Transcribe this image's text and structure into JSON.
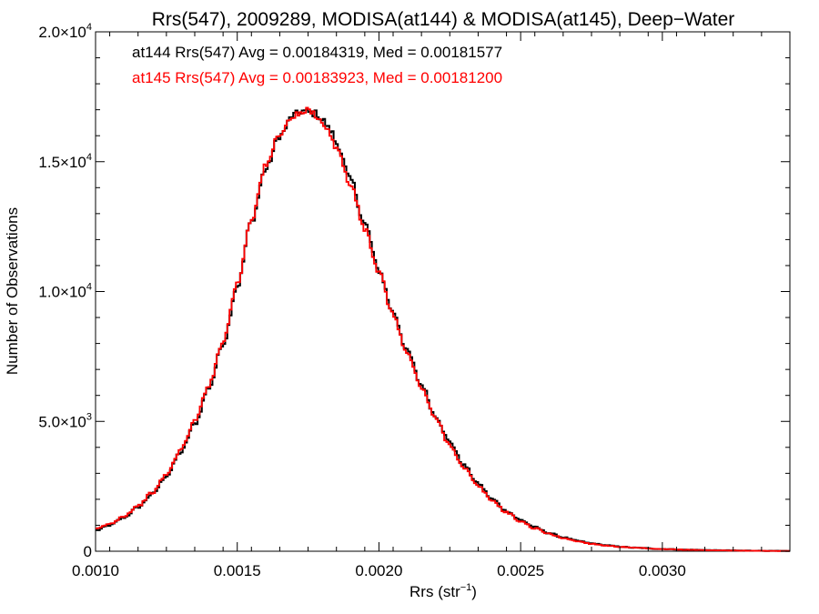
{
  "chart_data": {
    "type": "line",
    "title": "Rrs(547), 2009289, MODISA(at144) & MODISA(at145), Deep−Water",
    "xlabel": "Rrs (str",
    "xlabel_sup": "−1",
    "xlabel_suffix": ")",
    "ylabel": "Number of Observations",
    "xlim": [
      0.001,
      0.00345
    ],
    "ylim": [
      0,
      20000
    ],
    "grid": false,
    "x_ticks": [
      {
        "value": 0.001,
        "label": "0.0010"
      },
      {
        "value": 0.0015,
        "label": "0.0015"
      },
      {
        "value": 0.002,
        "label": "0.0020"
      },
      {
        "value": 0.0025,
        "label": "0.0025"
      },
      {
        "value": 0.003,
        "label": "0.0030"
      }
    ],
    "y_ticks": [
      {
        "value": 0,
        "mant": "0",
        "exp": ""
      },
      {
        "value": 5000,
        "mant": "5.0×10",
        "exp": "3"
      },
      {
        "value": 10000,
        "mant": "1.0×10",
        "exp": "4"
      },
      {
        "value": 15000,
        "mant": "1.5×10",
        "exp": "4"
      },
      {
        "value": 20000,
        "mant": "2.0×10",
        "exp": "4"
      }
    ],
    "legend": [
      {
        "text": "at144 Rrs(547) Avg = 0.00184319, Med = 0.00181577",
        "color": "#000000"
      },
      {
        "text": "at145 Rrs(547) Avg = 0.00183923, Med = 0.00181200",
        "color": "#ff0000"
      }
    ],
    "legend_position": "top-left",
    "series": [
      {
        "color": "#000000",
        "x": [
          0.001,
          0.00105,
          0.0011,
          0.00115,
          0.0012,
          0.00125,
          0.0013,
          0.00135,
          0.0014,
          0.00145,
          0.0015,
          0.00155,
          0.0016,
          0.00165,
          0.0017,
          0.00173,
          0.00175,
          0.00178,
          0.0018,
          0.00183,
          0.00185,
          0.0019,
          0.00195,
          0.002,
          0.00205,
          0.0021,
          0.00215,
          0.0022,
          0.00225,
          0.0023,
          0.00235,
          0.0024,
          0.00245,
          0.0025,
          0.00255,
          0.0026,
          0.00265,
          0.0027,
          0.00275,
          0.0028,
          0.00285,
          0.0029,
          0.003,
          0.0031,
          0.0032,
          0.0033,
          0.0034,
          0.00345
        ],
        "values": [
          800,
          1000,
          1300,
          1700,
          2200,
          2900,
          3800,
          4900,
          6300,
          8000,
          10200,
          12700,
          14700,
          16000,
          16800,
          16950,
          16900,
          16850,
          16600,
          16200,
          15700,
          14300,
          12600,
          10800,
          9200,
          7700,
          6400,
          5200,
          4200,
          3300,
          2600,
          2000,
          1550,
          1200,
          920,
          700,
          530,
          400,
          300,
          230,
          175,
          135,
          85,
          55,
          35,
          22,
          12,
          8
        ]
      },
      {
        "color": "#ff0000",
        "x": [
          0.001,
          0.00105,
          0.0011,
          0.00115,
          0.0012,
          0.00125,
          0.0013,
          0.00135,
          0.0014,
          0.00145,
          0.0015,
          0.00155,
          0.0016,
          0.00165,
          0.0017,
          0.00173,
          0.00175,
          0.00178,
          0.0018,
          0.00183,
          0.00185,
          0.0019,
          0.00195,
          0.002,
          0.00205,
          0.0021,
          0.00215,
          0.0022,
          0.00225,
          0.0023,
          0.00235,
          0.0024,
          0.00245,
          0.0025,
          0.00255,
          0.0026,
          0.00265,
          0.0027,
          0.00275,
          0.0028,
          0.00285,
          0.0029,
          0.003,
          0.0031,
          0.0032,
          0.0033,
          0.0034,
          0.00345
        ],
        "values": [
          850,
          1050,
          1350,
          1750,
          2250,
          2950,
          3900,
          5000,
          6400,
          8100,
          10300,
          12800,
          14800,
          16100,
          16750,
          16850,
          16950,
          16800,
          16500,
          16050,
          15500,
          14100,
          12400,
          10700,
          9100,
          7600,
          6300,
          5100,
          4100,
          3200,
          2500,
          1950,
          1500,
          1150,
          880,
          670,
          510,
          385,
          290,
          220,
          170,
          130,
          80,
          52,
          33,
          20,
          11,
          7
        ]
      }
    ]
  }
}
